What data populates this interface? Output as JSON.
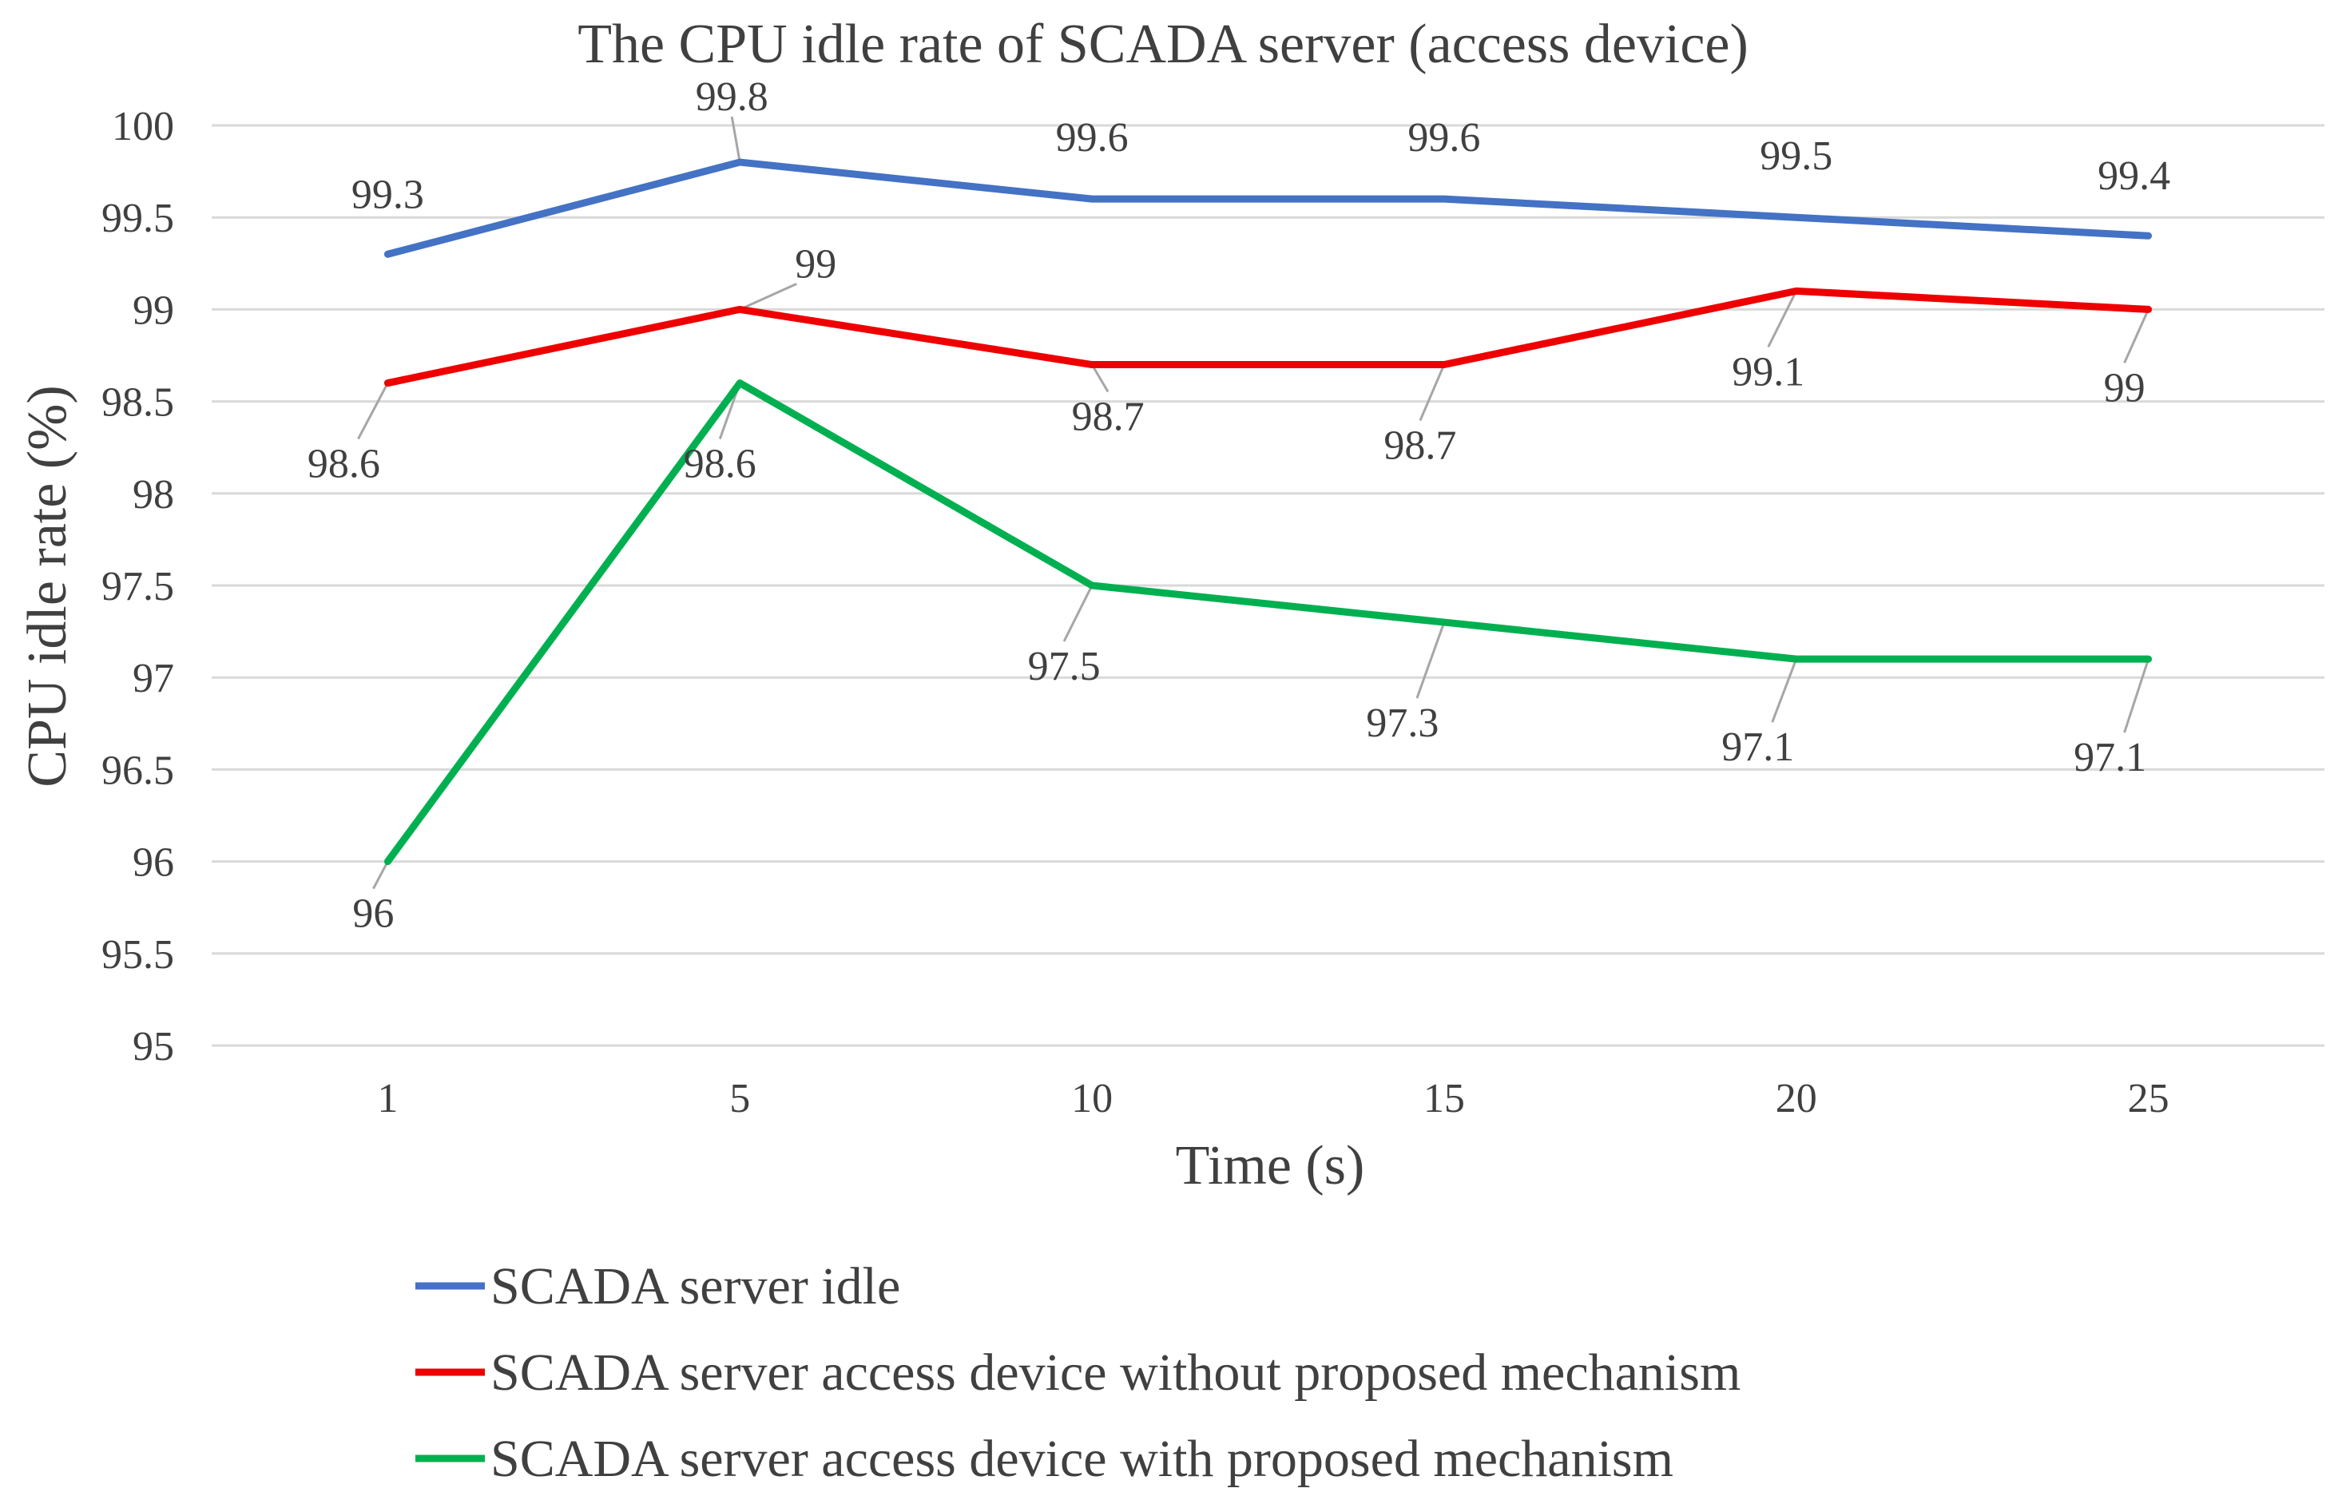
{
  "chart_data": {
    "type": "line",
    "title": "The CPU idle rate of SCADA server (access device)",
    "xlabel": "Time (s)",
    "ylabel": "CPU idle rate (%)",
    "categories": [
      "1",
      "5",
      "10",
      "15",
      "20",
      "25"
    ],
    "ylim": [
      95,
      100
    ],
    "yticks": [
      "95",
      "95.5",
      "96",
      "96.5",
      "97",
      "97.5",
      "98",
      "98.5",
      "99",
      "99.5",
      "100"
    ],
    "grid": true,
    "legend_position": "bottom",
    "series": [
      {
        "name": "SCADA server idle",
        "color": "#4472C4",
        "values": [
          99.3,
          99.8,
          99.6,
          99.6,
          99.5,
          99.4
        ],
        "labels": [
          "99.3",
          "99.8",
          "99.6",
          "99.6",
          "99.5",
          "99.4"
        ]
      },
      {
        "name": "SCADA server access device without proposed mechanism",
        "color": "#EE0000",
        "values": [
          98.6,
          99,
          98.7,
          98.7,
          99.1,
          99
        ],
        "labels": [
          "98.6",
          "99",
          "98.7",
          "98.7",
          "99.1",
          "99"
        ]
      },
      {
        "name": "SCADA server access device with proposed mechanism",
        "color": "#00B050",
        "values": [
          96,
          98.6,
          97.5,
          97.3,
          97.1,
          97.1
        ],
        "labels": [
          "96",
          "98.6",
          "97.5",
          "97.3",
          "97.1",
          "97.1"
        ]
      }
    ]
  }
}
